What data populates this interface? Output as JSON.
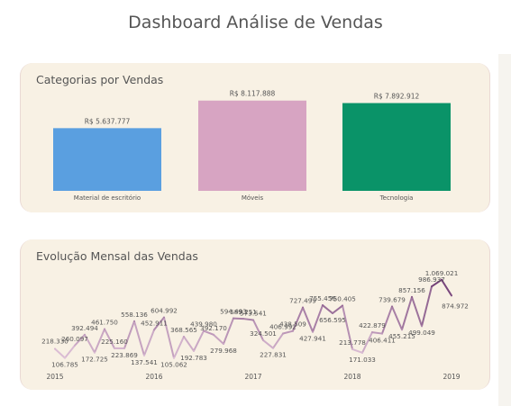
{
  "title": "Dashboard Análise de Vendas",
  "categories_panel": {
    "title": "Categorias por Vendas"
  },
  "monthly_panel": {
    "title": "Evolução Mensal das Vendas"
  },
  "chart_data": [
    {
      "type": "bar",
      "title": "Categorias por Vendas",
      "categories": [
        "Material de escritório",
        "Móveis",
        "Tecnologia"
      ],
      "values": [
        5637777,
        8117888,
        7892912
      ],
      "labels": [
        "R$ 5.637.777",
        "R$ 8.117.888",
        "R$ 7.892.912"
      ],
      "colors": [
        "#5a9fe0",
        "#d7a4c2",
        "#0a9368"
      ],
      "ylim": [
        0,
        8500000
      ]
    },
    {
      "type": "line",
      "title": "Evolução Mensal das Vendas",
      "x_ticks": [
        "2015",
        "2016",
        "2017",
        "2018",
        "2019"
      ],
      "series": [
        {
          "values": [
            218330,
            106785,
            260097,
            392494,
            172725,
            461750,
            225160,
            223869,
            558136,
            137541,
            452911,
            604992,
            105062,
            368565,
            192783,
            439980,
            392170,
            279968,
            594493,
            589251,
            573541,
            324501,
            227831,
            406992,
            438509,
            727499,
            427941,
            755456,
            656595,
            750405,
            213778,
            171033,
            422879,
            406411,
            739679,
            455215,
            857156,
            499049,
            986937,
            1069021,
            874972
          ],
          "labels": [
            "218.330",
            "106.785",
            "260.097",
            "392.494",
            "172.725",
            "461.750",
            "225.160",
            "223.869",
            "558.136",
            "137.541",
            "452.911",
            "604.992",
            "105.062",
            "368.565",
            "192.783",
            "439.980",
            "392.170",
            "279.968",
            "594.493",
            "589.251",
            "573.541",
            "324.501",
            "227.831",
            "406.992",
            "438.509",
            "727.499",
            "427.941",
            "755.456",
            "656.595",
            "750.405",
            "213.778",
            "171.033",
            "422.879",
            "406.411",
            "739.679",
            "455.215",
            "857.156",
            "499.049",
            "986.937",
            "1.069.021",
            "874.972"
          ]
        }
      ],
      "ylim": [
        80000,
        1100000
      ],
      "colors": {
        "low": "#e3c6db",
        "high": "#6e3a72"
      }
    }
  ]
}
